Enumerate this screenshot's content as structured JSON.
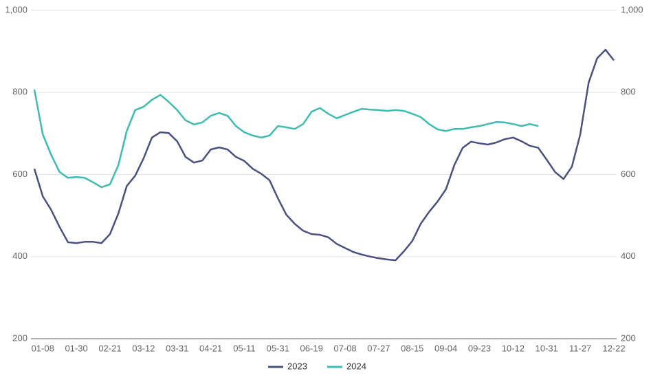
{
  "chart_data": {
    "type": "line",
    "categories": [
      null,
      "01-08",
      null,
      null,
      null,
      "01-30",
      null,
      null,
      null,
      "02-21",
      null,
      null,
      null,
      "03-12",
      null,
      null,
      null,
      "03-31",
      null,
      null,
      null,
      "04-21",
      null,
      null,
      null,
      "05-11",
      null,
      null,
      null,
      "05-31",
      null,
      null,
      null,
      "06-19",
      null,
      null,
      null,
      "07-08",
      null,
      null,
      null,
      "07-27",
      null,
      null,
      null,
      "08-15",
      null,
      null,
      null,
      "09-04",
      null,
      null,
      null,
      "09-23",
      null,
      null,
      null,
      "10-12",
      null,
      null,
      null,
      "10-31",
      null,
      null,
      null,
      "11-27",
      null,
      null,
      null,
      "12-22"
    ],
    "series": [
      {
        "name": "2023",
        "color": "#4a5080",
        "values": [
          614,
          547,
          514,
          472,
          435,
          433,
          436,
          436,
          433,
          455,
          505,
          572,
          597,
          639,
          690,
          703,
          701,
          681,
          643,
          629,
          634,
          661,
          666,
          661,
          643,
          633,
          614,
          602,
          586,
          542,
          502,
          480,
          463,
          455,
          453,
          447,
          431,
          421,
          411,
          405,
          400,
          396,
          393,
          391,
          413,
          438,
          480,
          509,
          534,
          564,
          623,
          665,
          680,
          676,
          673,
          678,
          686,
          690,
          681,
          670,
          665,
          636,
          606,
          589,
          619,
          698,
          824,
          883,
          904,
          878
        ]
      },
      {
        "name": "2024",
        "color": "#3dbdb1",
        "values": [
          807,
          698,
          648,
          606,
          592,
          594,
          592,
          581,
          569,
          576,
          623,
          706,
          757,
          765,
          782,
          794,
          777,
          757,
          732,
          722,
          727,
          743,
          750,
          743,
          718,
          703,
          695,
          690,
          695,
          718,
          715,
          711,
          723,
          753,
          762,
          748,
          737,
          745,
          753,
          760,
          758,
          757,
          755,
          757,
          755,
          748,
          740,
          723,
          710,
          706,
          711,
          711,
          715,
          718,
          723,
          728,
          727,
          723,
          718,
          723,
          718,
          null,
          null,
          null,
          null,
          null,
          null,
          null,
          null,
          null
        ]
      }
    ],
    "ylim": [
      200,
      1000
    ],
    "yticks": [
      200,
      400,
      600,
      800,
      {
        "value": 1000,
        "label": "1,000"
      }
    ],
    "grid": true
  }
}
